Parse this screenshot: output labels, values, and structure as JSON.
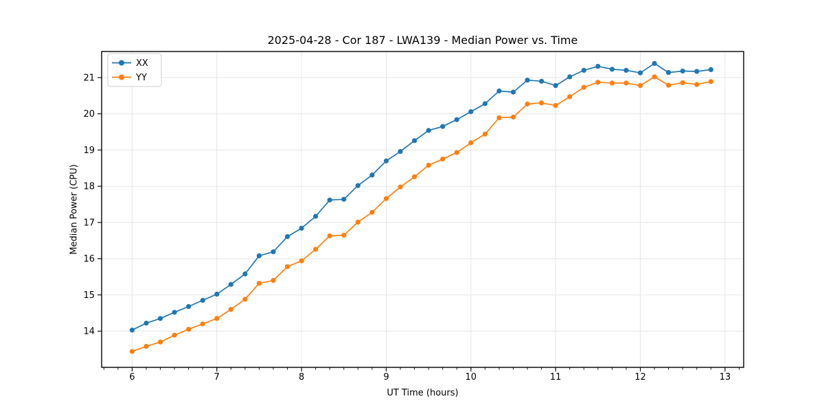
{
  "figure": {
    "title": "2025-04-28 - Cor 187 - LWA139 - Median Power vs. Time",
    "xlabel": "UT Time (hours)",
    "ylabel": "Median Power (CPU)"
  },
  "legend": {
    "entries": [
      {
        "label": "XX",
        "color": "#1f77b4"
      },
      {
        "label": "YY",
        "color": "#ff7f0e"
      }
    ]
  },
  "colors": {
    "series_xx": "#1f77b4",
    "series_yy": "#ff7f0e",
    "grid": "#e6e6e6",
    "spine": "#000000",
    "legend_border": "#cccccc",
    "background": "#ffffff"
  },
  "chart_data": {
    "type": "line",
    "title": "2025-04-28 - Cor 187 - LWA139 - Median Power vs. Time",
    "xlabel": "UT Time (hours)",
    "ylabel": "Median Power (CPU)",
    "xlim": [
      5.64,
      13.22
    ],
    "ylim": [
      13.0,
      21.72
    ],
    "xticks": [
      6,
      7,
      8,
      9,
      10,
      11,
      12,
      13
    ],
    "yticks": [
      14,
      15,
      16,
      17,
      18,
      19,
      20,
      21
    ],
    "x_minor_step": 0.166667,
    "grid": true,
    "legend_position": "upper-left",
    "marker": "circle",
    "x": [
      6.0,
      6.1667,
      6.3333,
      6.5,
      6.6667,
      6.8333,
      7.0,
      7.1667,
      7.3333,
      7.5,
      7.6667,
      7.8333,
      8.0,
      8.1667,
      8.3333,
      8.5,
      8.6667,
      8.8333,
      9.0,
      9.1667,
      9.3333,
      9.5,
      9.6667,
      9.8333,
      10.0,
      10.1667,
      10.3333,
      10.5,
      10.6667,
      10.8333,
      11.0,
      11.1667,
      11.3333,
      11.5,
      11.6667,
      11.8333,
      12.0,
      12.1667,
      12.3333,
      12.5,
      12.6667,
      12.8333
    ],
    "series": [
      {
        "name": "XX",
        "color": "#1f77b4",
        "values": [
          14.03,
          14.22,
          14.35,
          14.52,
          14.68,
          14.85,
          15.02,
          15.29,
          15.58,
          16.08,
          16.19,
          16.61,
          16.84,
          17.17,
          17.62,
          17.64,
          18.02,
          18.31,
          18.7,
          18.96,
          19.26,
          19.54,
          19.65,
          19.84,
          20.06,
          20.28,
          20.63,
          20.6,
          20.93,
          20.9,
          20.78,
          21.02,
          21.2,
          21.31,
          21.23,
          21.2,
          21.13,
          21.39,
          21.14,
          21.18,
          21.17,
          21.22
        ]
      },
      {
        "name": "YY",
        "color": "#ff7f0e",
        "values": [
          13.44,
          13.58,
          13.7,
          13.89,
          14.05,
          14.2,
          14.35,
          14.6,
          14.88,
          15.32,
          15.4,
          15.78,
          15.94,
          16.26,
          16.63,
          16.65,
          17.01,
          17.28,
          17.66,
          17.98,
          18.26,
          18.58,
          18.75,
          18.93,
          19.2,
          19.44,
          19.89,
          19.91,
          20.27,
          20.3,
          20.23,
          20.47,
          20.73,
          20.87,
          20.85,
          20.85,
          20.78,
          21.02,
          20.79,
          20.86,
          20.81,
          20.89
        ]
      }
    ]
  }
}
